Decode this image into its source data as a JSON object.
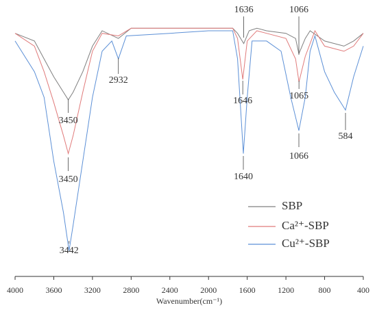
{
  "chart_data": {
    "type": "line",
    "xlabel": "Wavenumber(cm⁻¹)",
    "xlim": [
      4000,
      400
    ],
    "xticks": [
      4000,
      3600,
      3200,
      2800,
      2400,
      2000,
      1600,
      1200,
      800,
      400
    ],
    "ylim": [
      0,
      100
    ],
    "legend": "lower right",
    "series": [
      {
        "name": "SBP",
        "color": "#7f7f7f",
        "x": [
          4000,
          3800,
          3700,
          3600,
          3500,
          3450,
          3400,
          3300,
          3200,
          3100,
          2932,
          2800,
          2400,
          2000,
          1750,
          1700,
          1636,
          1580,
          1500,
          1400,
          1200,
          1100,
          1066,
          1000,
          950,
          800,
          700,
          600,
          500,
          400
        ],
        "values": [
          95,
          92,
          85,
          78,
          72,
          69,
          72,
          80,
          90,
          96,
          93,
          97,
          97,
          97,
          97,
          95,
          91,
          96,
          97,
          96,
          95,
          93,
          87,
          93,
          96,
          92,
          91,
          90,
          92,
          95
        ]
      },
      {
        "name": "Ca²⁺-SBP",
        "color": "#e07a7a",
        "x": [
          4000,
          3800,
          3700,
          3600,
          3500,
          3450,
          3400,
          3300,
          3200,
          3100,
          2932,
          2800,
          2400,
          2000,
          1750,
          1700,
          1646,
          1600,
          1500,
          1400,
          1200,
          1100,
          1065,
          1000,
          900,
          800,
          700,
          600,
          500,
          400
        ],
        "values": [
          95,
          90,
          80,
          68,
          55,
          48,
          55,
          72,
          88,
          95,
          94,
          97,
          97,
          97,
          97,
          93,
          77,
          92,
          96,
          95,
          93,
          85,
          76,
          86,
          96,
          90,
          89,
          88,
          90,
          95
        ]
      },
      {
        "name": "Cu²⁺-SBP",
        "color": "#5b8fd6",
        "x": [
          4000,
          3800,
          3700,
          3600,
          3500,
          3442,
          3400,
          3300,
          3200,
          3100,
          3000,
          2932,
          2850,
          2400,
          2000,
          1750,
          1700,
          1640,
          1600,
          1550,
          1400,
          1250,
          1150,
          1066,
          1000,
          950,
          900,
          800,
          700,
          584,
          500,
          400
        ],
        "values": [
          92,
          80,
          70,
          45,
          25,
          10,
          20,
          45,
          70,
          88,
          92,
          85,
          94,
          95,
          96,
          96,
          85,
          48,
          70,
          92,
          92,
          88,
          70,
          57,
          70,
          88,
          94,
          80,
          72,
          65,
          78,
          90
        ]
      }
    ],
    "annotations": [
      {
        "text": "1636",
        "x": 1636
      },
      {
        "text": "1066",
        "x": 1066
      },
      {
        "text": "2932",
        "x": 2932
      },
      {
        "text": "3450",
        "x": 3450
      },
      {
        "text": "1646",
        "x": 1646
      },
      {
        "text": "1065",
        "x": 1065
      },
      {
        "text": "584",
        "x": 584
      },
      {
        "text": "3450",
        "x": 3450
      },
      {
        "text": "1066",
        "x": 1066
      },
      {
        "text": "1640",
        "x": 1640
      },
      {
        "text": "3442",
        "x": 3442
      }
    ]
  }
}
